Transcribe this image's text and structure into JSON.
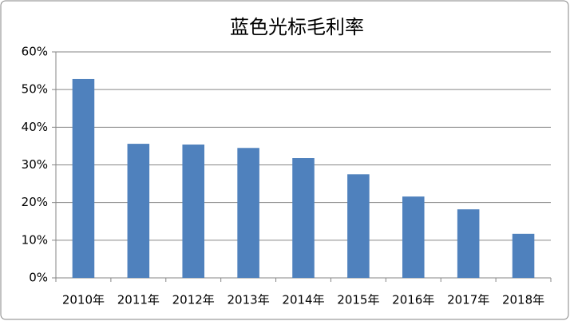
{
  "chart_data": {
    "type": "bar",
    "title": "蓝色光标毛利率",
    "categories": [
      "2010年",
      "2011年",
      "2012年",
      "2013年",
      "2014年",
      "2015年",
      "2016年",
      "2017年",
      "2018年"
    ],
    "values": [
      52.8,
      35.6,
      35.4,
      34.5,
      31.8,
      27.5,
      21.6,
      18.2,
      11.7
    ],
    "color": "#4f81bd",
    "ylim": [
      0,
      60
    ],
    "yticks": [
      {
        "value": 0,
        "label": "0%"
      },
      {
        "value": 10,
        "label": "10%"
      },
      {
        "value": 20,
        "label": "20%"
      },
      {
        "value": 30,
        "label": "30%"
      },
      {
        "value": 40,
        "label": "40%"
      },
      {
        "value": 50,
        "label": "50%"
      },
      {
        "value": 60,
        "label": "60%"
      }
    ],
    "grid": true
  }
}
